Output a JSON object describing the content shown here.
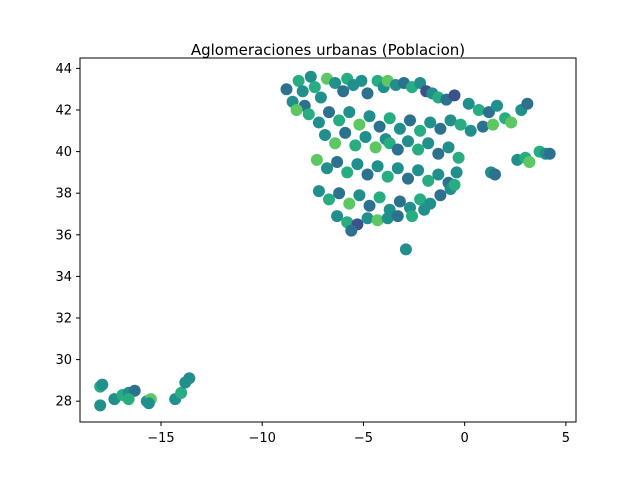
{
  "chart_data": {
    "type": "scatter",
    "title": "Aglomeraciones urbanas (Poblacion)",
    "xlabel": "",
    "ylabel": "",
    "xlim": [
      -19,
      5.5
    ],
    "ylim": [
      27,
      44.5
    ],
    "x_ticks": [
      {
        "value": -15,
        "label": "−15"
      },
      {
        "value": -10,
        "label": "−10"
      },
      {
        "value": -5,
        "label": "−5"
      },
      {
        "value": 0,
        "label": "0"
      },
      {
        "value": 5,
        "label": "5"
      }
    ],
    "y_ticks": [
      {
        "value": 28,
        "label": "28"
      },
      {
        "value": 30,
        "label": "30"
      },
      {
        "value": 32,
        "label": "32"
      },
      {
        "value": 34,
        "label": "34"
      },
      {
        "value": 36,
        "label": "36"
      },
      {
        "value": 38,
        "label": "38"
      },
      {
        "value": 40,
        "label": "40"
      },
      {
        "value": 42,
        "label": "42"
      },
      {
        "value": 44,
        "label": "44"
      }
    ],
    "grid": false,
    "legend": "none",
    "colormap": [
      "#3b528b",
      "#2c728e",
      "#21908d",
      "#27ad81",
      "#5dc863"
    ],
    "points": [
      [
        -8.8,
        43.0,
        1
      ],
      [
        -8.5,
        42.4,
        2
      ],
      [
        -8.2,
        43.4,
        3
      ],
      [
        -8.0,
        42.9,
        2
      ],
      [
        -7.9,
        42.2,
        1
      ],
      [
        -7.6,
        43.6,
        2
      ],
      [
        -7.4,
        43.1,
        3
      ],
      [
        -7.1,
        42.6,
        2
      ],
      [
        -6.8,
        43.5,
        4
      ],
      [
        -6.4,
        43.3,
        2
      ],
      [
        -6.0,
        42.9,
        1
      ],
      [
        -5.8,
        43.5,
        3
      ],
      [
        -5.5,
        43.2,
        2
      ],
      [
        -5.1,
        43.4,
        2
      ],
      [
        -4.8,
        42.8,
        1
      ],
      [
        -4.3,
        43.4,
        3
      ],
      [
        -4.0,
        43.1,
        2
      ],
      [
        -3.8,
        43.4,
        4
      ],
      [
        -3.4,
        43.2,
        2
      ],
      [
        -3.0,
        43.3,
        1
      ],
      [
        -2.6,
        43.1,
        3
      ],
      [
        -2.2,
        43.3,
        2
      ],
      [
        -1.9,
        42.9,
        0
      ],
      [
        -1.6,
        42.8,
        2
      ],
      [
        -1.3,
        42.6,
        3
      ],
      [
        -0.9,
        42.5,
        1
      ],
      [
        -0.5,
        42.7,
        0
      ],
      [
        0.2,
        42.3,
        2
      ],
      [
        0.7,
        42.0,
        3
      ],
      [
        1.2,
        41.9,
        1
      ],
      [
        1.6,
        42.2,
        2
      ],
      [
        2.0,
        41.6,
        3
      ],
      [
        2.3,
        41.4,
        4
      ],
      [
        2.8,
        42.0,
        2
      ],
      [
        3.1,
        42.3,
        1
      ],
      [
        -8.3,
        42.0,
        4
      ],
      [
        -7.7,
        41.8,
        3
      ],
      [
        -7.2,
        41.4,
        2
      ],
      [
        -6.7,
        41.9,
        1
      ],
      [
        -6.2,
        41.5,
        3
      ],
      [
        -5.7,
        41.9,
        2
      ],
      [
        -5.2,
        41.3,
        4
      ],
      [
        -4.7,
        41.7,
        2
      ],
      [
        -4.2,
        41.2,
        1
      ],
      [
        -3.7,
        41.6,
        3
      ],
      [
        -3.2,
        41.1,
        2
      ],
      [
        -2.7,
        41.5,
        1
      ],
      [
        -2.2,
        41.0,
        3
      ],
      [
        -1.7,
        41.4,
        2
      ],
      [
        -1.2,
        41.1,
        1
      ],
      [
        -0.7,
        41.5,
        2
      ],
      [
        -0.2,
        41.3,
        3
      ],
      [
        0.3,
        41.0,
        2
      ],
      [
        0.9,
        41.2,
        1
      ],
      [
        1.4,
        41.3,
        4
      ],
      [
        -6.9,
        40.8,
        2
      ],
      [
        -6.4,
        40.4,
        4
      ],
      [
        -5.9,
        40.9,
        1
      ],
      [
        -5.4,
        40.3,
        3
      ],
      [
        -4.9,
        40.7,
        2
      ],
      [
        -4.4,
        40.2,
        4
      ],
      [
        -3.9,
        40.6,
        2
      ],
      [
        -3.7,
        40.4,
        3
      ],
      [
        -3.3,
        40.1,
        1
      ],
      [
        -2.8,
        40.5,
        2
      ],
      [
        -2.3,
        40.1,
        3
      ],
      [
        -1.8,
        40.4,
        2
      ],
      [
        -1.3,
        39.9,
        1
      ],
      [
        -0.8,
        40.2,
        2
      ],
      [
        -0.3,
        39.7,
        3
      ],
      [
        -7.3,
        39.6,
        4
      ],
      [
        -6.8,
        39.2,
        2
      ],
      [
        -6.3,
        39.5,
        1
      ],
      [
        -5.8,
        39.0,
        3
      ],
      [
        -5.3,
        39.4,
        2
      ],
      [
        -4.8,
        38.9,
        1
      ],
      [
        -4.3,
        39.3,
        2
      ],
      [
        -3.8,
        38.8,
        3
      ],
      [
        -3.3,
        39.2,
        2
      ],
      [
        -2.8,
        38.7,
        1
      ],
      [
        -2.3,
        39.1,
        2
      ],
      [
        -1.8,
        38.6,
        3
      ],
      [
        -1.3,
        38.9,
        2
      ],
      [
        -0.8,
        38.5,
        1
      ],
      [
        -0.4,
        39.0,
        2
      ],
      [
        -7.2,
        38.1,
        2
      ],
      [
        -6.7,
        37.7,
        3
      ],
      [
        -6.2,
        38.0,
        1
      ],
      [
        -5.7,
        37.5,
        4
      ],
      [
        -5.2,
        37.9,
        2
      ],
      [
        -4.7,
        37.4,
        1
      ],
      [
        -4.2,
        37.8,
        3
      ],
      [
        -3.7,
        37.2,
        2
      ],
      [
        -3.2,
        37.6,
        1
      ],
      [
        -2.7,
        37.3,
        2
      ],
      [
        -2.2,
        37.7,
        3
      ],
      [
        -1.7,
        37.5,
        2
      ],
      [
        -1.2,
        37.9,
        1
      ],
      [
        -0.7,
        38.2,
        2
      ],
      [
        -0.5,
        38.4,
        3
      ],
      [
        -6.3,
        36.9,
        2
      ],
      [
        -5.8,
        36.6,
        3
      ],
      [
        -5.3,
        36.5,
        0
      ],
      [
        -4.8,
        36.8,
        2
      ],
      [
        -4.3,
        36.7,
        4
      ],
      [
        -3.8,
        36.8,
        2
      ],
      [
        -3.3,
        36.9,
        1
      ],
      [
        -2.6,
        36.9,
        3
      ],
      [
        -2.0,
        37.2,
        2
      ],
      [
        -5.6,
        36.2,
        1
      ],
      [
        1.3,
        39.0,
        2
      ],
      [
        1.5,
        38.9,
        1
      ],
      [
        2.6,
        39.6,
        2
      ],
      [
        3.0,
        39.7,
        3
      ],
      [
        3.2,
        39.5,
        4
      ],
      [
        3.7,
        40.0,
        3
      ],
      [
        4.0,
        39.9,
        2
      ],
      [
        4.2,
        39.9,
        1
      ],
      [
        -2.9,
        35.3,
        2
      ],
      [
        -18.0,
        28.7,
        3
      ],
      [
        -17.9,
        28.8,
        2
      ],
      [
        -18.0,
        27.8,
        2
      ],
      [
        -17.3,
        28.1,
        2
      ],
      [
        -16.9,
        28.3,
        3
      ],
      [
        -16.6,
        28.4,
        2
      ],
      [
        -16.3,
        28.5,
        1
      ],
      [
        -16.6,
        28.1,
        3
      ],
      [
        -15.7,
        28.0,
        2
      ],
      [
        -15.5,
        28.1,
        4
      ],
      [
        -15.6,
        27.9,
        2
      ],
      [
        -14.3,
        28.1,
        2
      ],
      [
        -14.0,
        28.4,
        3
      ],
      [
        -13.8,
        28.9,
        2
      ],
      [
        -13.6,
        29.1,
        2
      ]
    ]
  }
}
